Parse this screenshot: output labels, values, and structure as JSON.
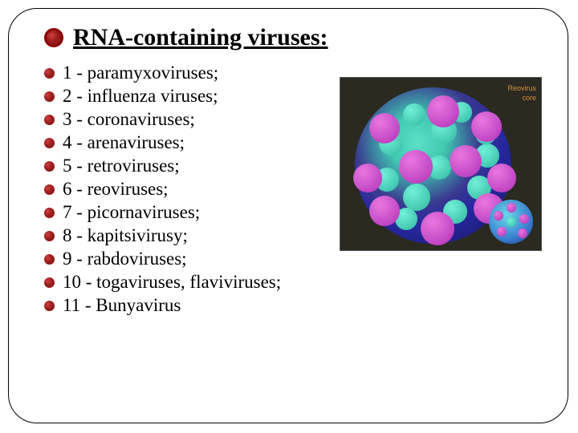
{
  "title": "RNA-containing viruses:",
  "items": [
    "1 - paramyxoviruses;",
    "2 - influenza viruses;",
    "3 - coronaviruses;",
    "4 - arenaviruses;",
    "5 - retroviruses;",
    "6 - reoviruses;",
    "7 - picornaviruses;",
    "8 - kapitsivirusy;",
    "9 - rabdoviruses;",
    "10 - togaviruses, flaviviruses;",
    "11 - Bunyavirus"
  ],
  "image": {
    "background_color": "#2a2a20",
    "sphere_colors": [
      "#5ce0c8",
      "#3a3a90",
      "#151560"
    ],
    "spike_color_cyan": "#40c8b0",
    "spike_color_magenta": "#c848c8",
    "sidebar_lines": [
      "Reovirus",
      "core"
    ],
    "blobs_cyan": [
      {
        "t": 20,
        "l": 60,
        "s": 28
      },
      {
        "t": 38,
        "l": 95,
        "s": 32
      },
      {
        "t": 18,
        "l": 120,
        "s": 26
      },
      {
        "t": 55,
        "l": 30,
        "s": 30
      },
      {
        "t": 70,
        "l": 150,
        "s": 30
      },
      {
        "t": 100,
        "l": 25,
        "s": 30
      },
      {
        "t": 120,
        "l": 60,
        "s": 34
      },
      {
        "t": 140,
        "l": 110,
        "s": 30
      },
      {
        "t": 150,
        "l": 50,
        "s": 28
      },
      {
        "t": 110,
        "l": 140,
        "s": 30
      },
      {
        "t": 45,
        "l": 150,
        "s": 26
      },
      {
        "t": 85,
        "l": 90,
        "s": 30
      }
    ],
    "blobs_magenta": [
      {
        "t": 10,
        "l": 90,
        "s": 40
      },
      {
        "t": 32,
        "l": 18,
        "s": 38
      },
      {
        "t": 30,
        "l": 145,
        "s": 38
      },
      {
        "t": 78,
        "l": 55,
        "s": 42
      },
      {
        "t": 72,
        "l": 118,
        "s": 40
      },
      {
        "t": 95,
        "l": -2,
        "s": 36
      },
      {
        "t": 95,
        "l": 165,
        "s": 36
      },
      {
        "t": 135,
        "l": 18,
        "s": 38
      },
      {
        "t": 155,
        "l": 82,
        "s": 42
      },
      {
        "t": 132,
        "l": 148,
        "s": 38
      }
    ],
    "mini_blobs": [
      {
        "t": 4,
        "l": 22,
        "s": 12,
        "c": "mag"
      },
      {
        "t": 14,
        "l": 6,
        "s": 12,
        "c": "mag"
      },
      {
        "t": 34,
        "l": 10,
        "s": 12,
        "c": "mag"
      },
      {
        "t": 36,
        "l": 36,
        "s": 12,
        "c": "mag"
      },
      {
        "t": 18,
        "l": 38,
        "s": 12,
        "c": "mag"
      },
      {
        "t": 22,
        "l": 22,
        "s": 12,
        "c": "cyan"
      }
    ]
  },
  "colors": {
    "bullet_dark": "#8b0000",
    "text": "#000000",
    "frame": "#000000"
  },
  "typography": {
    "title_fontsize": 30,
    "item_fontsize": 23,
    "font_family": "Times New Roman"
  }
}
